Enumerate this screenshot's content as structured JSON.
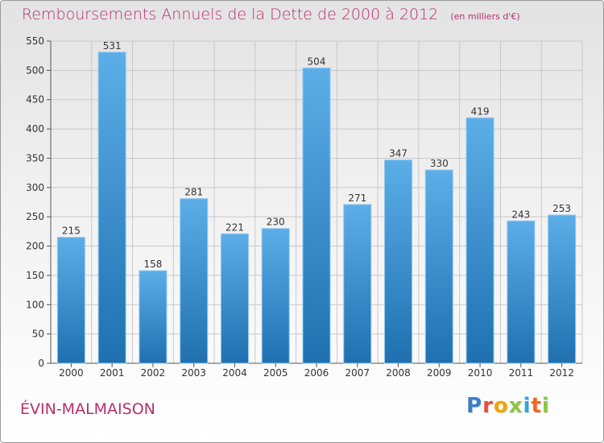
{
  "header": {
    "title": "Remboursements Annuels de la Dette de 2000 à 2012",
    "unit": "(en milliers d'€)"
  },
  "footer": {
    "city": "ÉVIN-MALMAISON",
    "logo_letters": [
      "P",
      "r",
      "o",
      "x",
      "i",
      "t",
      "i"
    ],
    "logo_colors": [
      "#3a7ec9",
      "#e94b3c",
      "#f0a500",
      "#8cc63f",
      "#2aa8d8",
      "#f26522",
      "#8cc63f"
    ]
  },
  "colors": {
    "title": "#b5306b",
    "bar_light": "#5caee8",
    "bar_dark": "#1f70b0",
    "grid": "#c8c8c8"
  },
  "chart_data": {
    "type": "bar",
    "categories": [
      "2000",
      "2001",
      "2002",
      "2003",
      "2004",
      "2005",
      "2006",
      "2007",
      "2008",
      "2009",
      "2010",
      "2011",
      "2012"
    ],
    "values": [
      215,
      531,
      158,
      281,
      221,
      230,
      504,
      271,
      347,
      330,
      419,
      243,
      253
    ],
    "ylim": [
      0,
      550
    ],
    "yticks": [
      0,
      50,
      100,
      150,
      200,
      250,
      300,
      350,
      400,
      450,
      500,
      550
    ],
    "grid": true,
    "data_labels": true
  }
}
